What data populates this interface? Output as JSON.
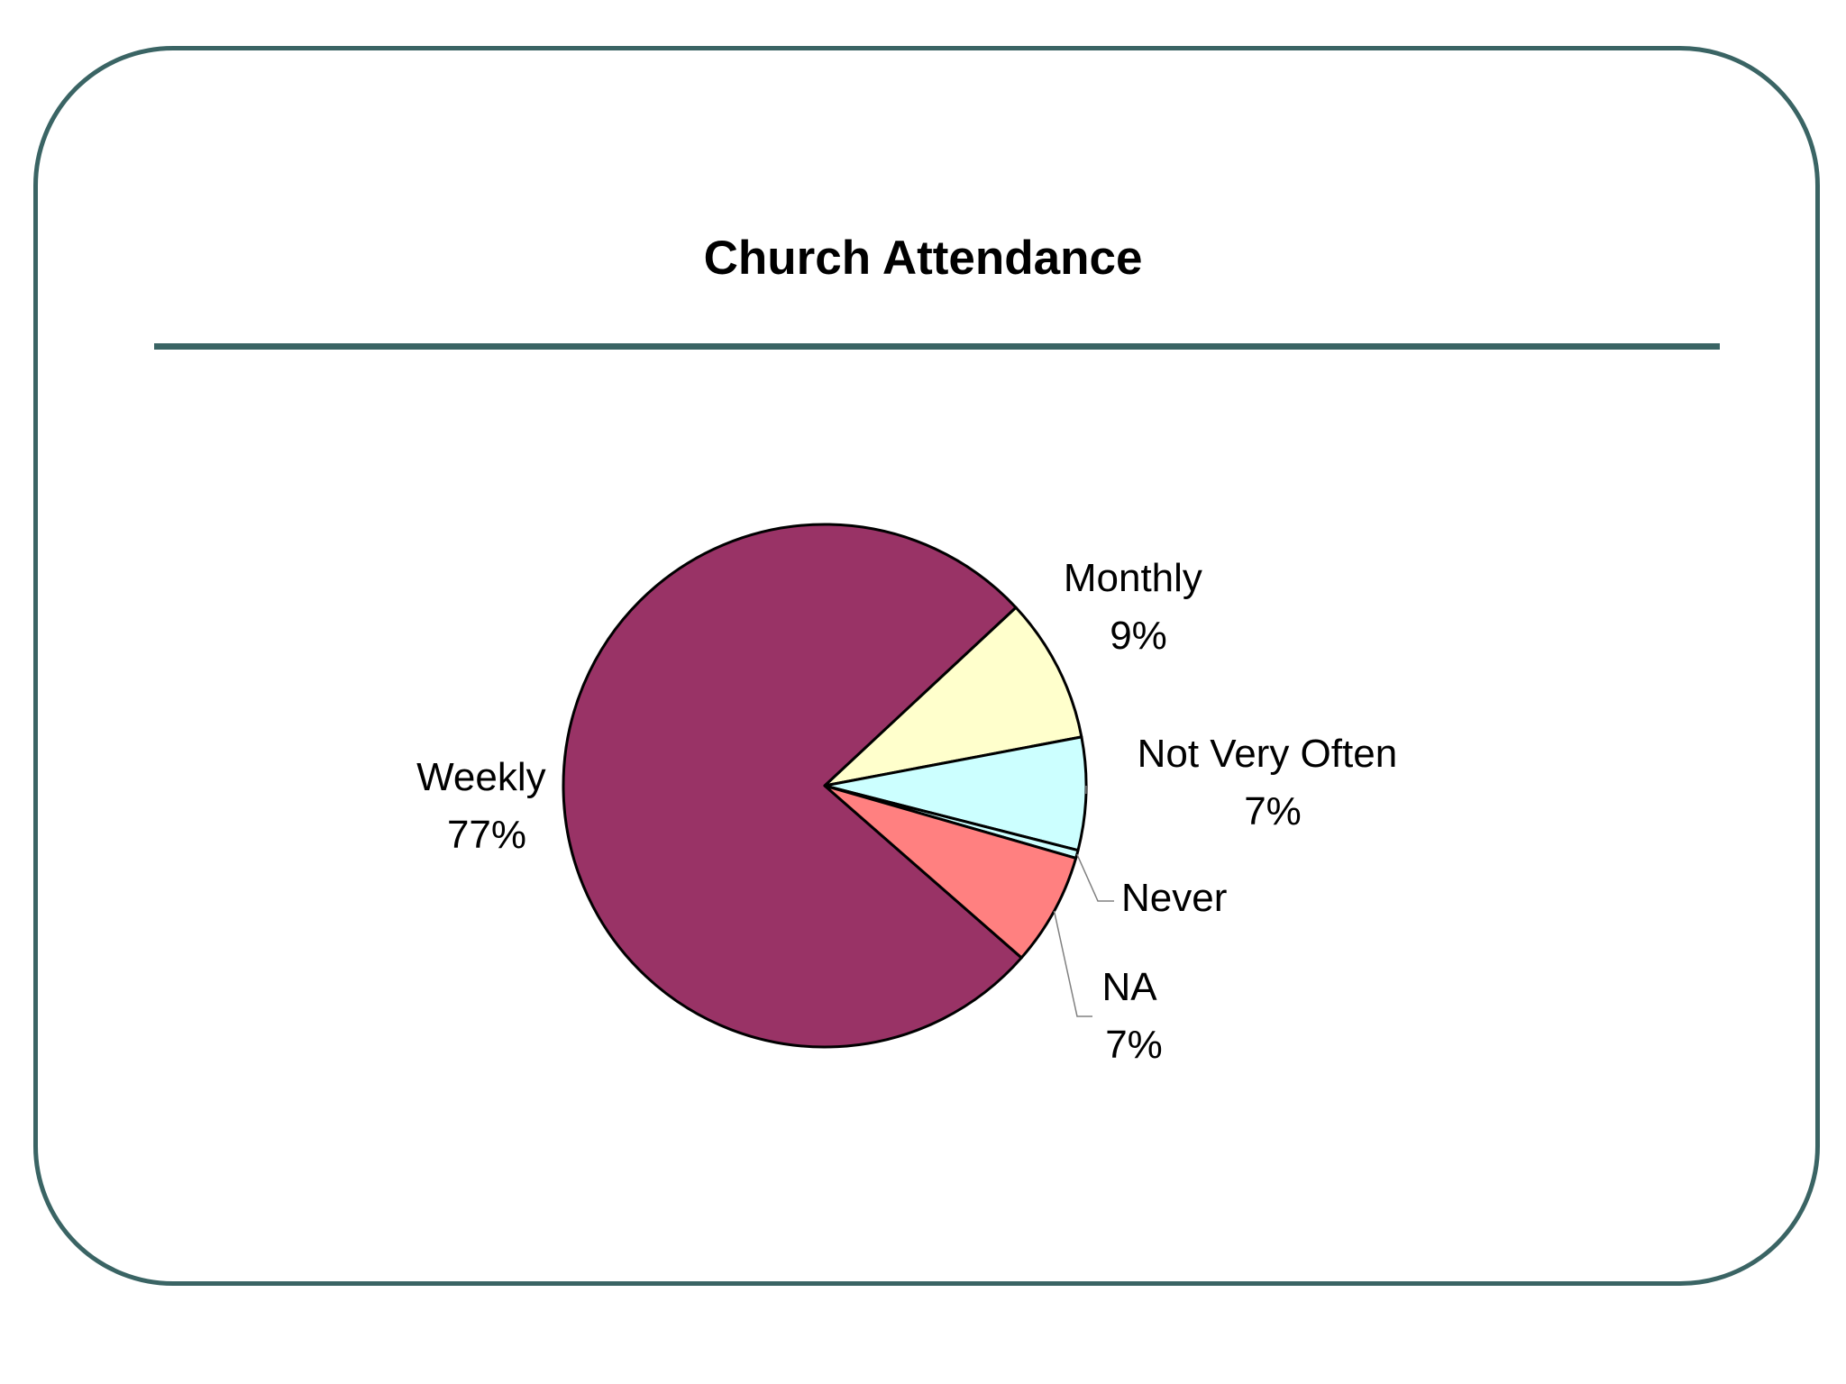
{
  "slide": {
    "title": "Church Attendance"
  },
  "colors": {
    "frame": "#3a6464",
    "outline": "#000000",
    "leader": "#808080"
  },
  "chart_data": {
    "type": "pie",
    "title": "Church Attendance",
    "start_angle_deg": 0,
    "direction": "clockwise-from-weekly-end",
    "slices": [
      {
        "label": "Weekly",
        "percent_label": "77%",
        "value": 77,
        "color": "#993366"
      },
      {
        "label": "Monthly",
        "percent_label": "9%",
        "value": 9,
        "color": "#ffffcc"
      },
      {
        "label": "Not Very Often",
        "percent_label": "7%",
        "value": 7,
        "color": "#ccffff"
      },
      {
        "label": "Never",
        "percent_label": "",
        "value": 0.5,
        "color": "#ccffff"
      },
      {
        "label": "NA",
        "percent_label": "7%",
        "value": 7,
        "color": "#ff8080"
      }
    ],
    "legend": "none",
    "labels": "outside"
  }
}
